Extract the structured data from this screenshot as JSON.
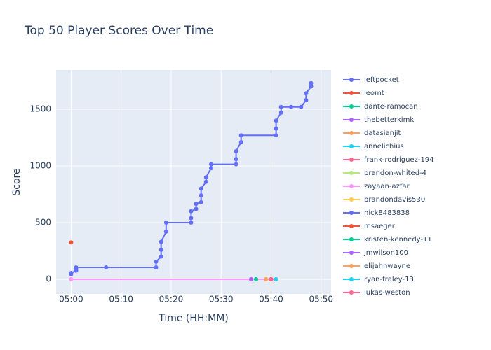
{
  "chart_data": {
    "type": "line",
    "title": "Top 50 Player Scores Over Time",
    "xlabel": "Time (HH:MM)",
    "ylabel": "Score",
    "xlim": [
      "04:57",
      "05:52"
    ],
    "xticks": [
      "05:00",
      "05:10",
      "05:20",
      "05:30",
      "05:40",
      "05:50"
    ],
    "ylim": [
      -130,
      1846
    ],
    "yticks": [
      0,
      500,
      1000,
      1500
    ],
    "grid": true,
    "legend": "right",
    "series": [
      {
        "name": "leftpocket",
        "color": "#636efa",
        "x": [
          "05:00",
          "05:00",
          "05:01",
          "05:01",
          "05:01",
          "05:07",
          "05:17",
          "05:17",
          "05:18",
          "05:18",
          "05:18",
          "05:19",
          "05:19",
          "05:24",
          "05:24",
          "05:24",
          "05:25",
          "05:25",
          "05:26",
          "05:26",
          "05:26",
          "05:27",
          "05:27",
          "05:28",
          "05:28",
          "05:33",
          "05:33",
          "05:33",
          "05:34",
          "05:34",
          "05:41",
          "05:41",
          "05:41",
          "05:42",
          "05:42",
          "05:44",
          "05:46",
          "05:47",
          "05:47",
          "05:48",
          "05:48"
        ],
        "values": [
          45,
          55,
          75,
          90,
          105,
          105,
          105,
          155,
          200,
          260,
          330,
          420,
          500,
          500,
          540,
          600,
          620,
          665,
          680,
          740,
          800,
          860,
          900,
          980,
          1015,
          1015,
          1060,
          1130,
          1210,
          1270,
          1270,
          1330,
          1400,
          1470,
          1520,
          1520,
          1520,
          1580,
          1640,
          1700,
          1730
        ]
      },
      {
        "name": "leomt",
        "color": "#EF553B",
        "x": [
          "05:00"
        ],
        "values": [
          325
        ]
      },
      {
        "name": "dante-ramocan",
        "color": "#00cc96",
        "x": [
          "05:36"
        ],
        "values": [
          0
        ]
      },
      {
        "name": "thebetterkimk",
        "color": "#ab63fa",
        "x": [
          "05:36"
        ],
        "values": [
          0
        ]
      },
      {
        "name": "datasianjit",
        "color": "#FFA15A",
        "x": [
          "05:39"
        ],
        "values": [
          0
        ]
      },
      {
        "name": "annelichius",
        "color": "#19d3f3",
        "x": [
          "05:40"
        ],
        "values": [
          0
        ]
      },
      {
        "name": "frank-rodriguez-194",
        "color": "#FF6692",
        "x": [
          "05:40"
        ],
        "values": [
          0
        ]
      },
      {
        "name": "brandon-whited-4",
        "color": "#B6E880",
        "x": [
          "05:41"
        ],
        "values": [
          0
        ]
      },
      {
        "name": "zayaan-azfar",
        "color": "#FF97FF",
        "x": [
          "05:00",
          "05:41"
        ],
        "values": [
          0,
          0
        ]
      },
      {
        "name": "brandondavis530",
        "color": "#FECB52",
        "x": [
          "05:39"
        ],
        "values": [
          0
        ]
      },
      {
        "name": "nick8483838",
        "color": "#636efa",
        "x": [
          "05:37"
        ],
        "values": [
          0
        ]
      },
      {
        "name": "msaeger",
        "color": "#EF553B",
        "x": [
          "05:40"
        ],
        "values": [
          0
        ]
      },
      {
        "name": "kristen-kennedy-11",
        "color": "#00cc96",
        "x": [
          "05:37"
        ],
        "values": [
          0
        ]
      },
      {
        "name": "jmwilson100",
        "color": "#ab63fa",
        "x": [
          "05:36"
        ],
        "values": [
          0
        ]
      },
      {
        "name": "elijahnwayne",
        "color": "#FFA15A",
        "x": [
          "05:39"
        ],
        "values": [
          0
        ]
      },
      {
        "name": "ryan-fraley-13",
        "color": "#19d3f3",
        "x": [
          "05:41"
        ],
        "values": [
          0
        ]
      },
      {
        "name": "lukas-weston",
        "color": "#FF6692",
        "x": [
          "05:40"
        ],
        "values": [
          0
        ]
      }
    ]
  }
}
